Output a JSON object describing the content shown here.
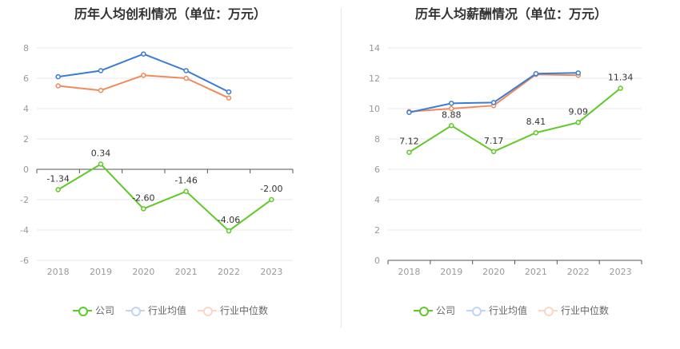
{
  "chart_data": [
    {
      "type": "line",
      "title": "历年人均创利情况（单位：万元）",
      "categories": [
        "2018",
        "2019",
        "2020",
        "2021",
        "2022",
        "2023"
      ],
      "ylim": [
        -6,
        8
      ],
      "yticks": [
        -6,
        -4,
        -2,
        0,
        2,
        4,
        6,
        8
      ],
      "grid": true,
      "legend_position": "bottom",
      "series": [
        {
          "name": "公司",
          "color": "#5fc925",
          "values": [
            -1.34,
            0.34,
            -2.6,
            -1.46,
            -4.06,
            -2.0
          ],
          "labels": [
            "-1.34",
            "0.34",
            "-2.60",
            "-1.46",
            "-4.06",
            "-2.00"
          ]
        },
        {
          "name": "行业均值",
          "color": "#3a7bd5",
          "values": [
            6.1,
            6.5,
            7.6,
            6.5,
            5.1,
            null
          ]
        },
        {
          "name": "行业中位数",
          "color": "#f08a5d",
          "values": [
            5.5,
            5.2,
            6.2,
            6.0,
            4.7,
            null
          ]
        }
      ]
    },
    {
      "type": "line",
      "title": "历年人均薪酬情况（单位：万元）",
      "categories": [
        "2018",
        "2019",
        "2020",
        "2021",
        "2022",
        "2023"
      ],
      "ylim": [
        0,
        14
      ],
      "yticks": [
        0,
        2,
        4,
        6,
        8,
        10,
        12,
        14
      ],
      "grid": true,
      "legend_position": "bottom",
      "series": [
        {
          "name": "公司",
          "color": "#5fc925",
          "values": [
            7.12,
            8.88,
            7.17,
            8.41,
            9.09,
            11.34
          ],
          "labels": [
            "7.12",
            "8.88",
            "7.17",
            "8.41",
            "9.09",
            "11.34"
          ]
        },
        {
          "name": "行业均值",
          "color": "#3a7bd5",
          "values": [
            9.75,
            10.35,
            10.4,
            12.3,
            12.35,
            null
          ]
        },
        {
          "name": "行业中位数",
          "color": "#f08a5d",
          "values": [
            9.8,
            10.0,
            10.2,
            12.25,
            12.2,
            null
          ]
        }
      ]
    }
  ]
}
